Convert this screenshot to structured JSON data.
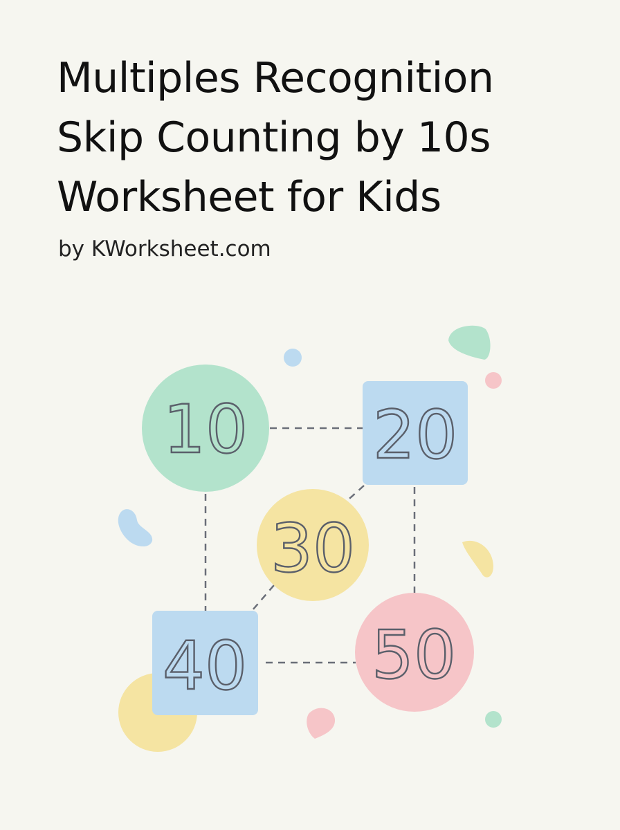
{
  "title_lines": [
    "Multiples Recognition",
    "Skip Counting by 10s",
    "Worksheet for Kids"
  ],
  "byline": "by KWorksheet.com",
  "numbers": [
    "10",
    "20",
    "30",
    "40",
    "50"
  ],
  "colors": {
    "background": "#f6f6f0",
    "green": "#b3e3cc",
    "blue": "#bcdaf0",
    "yellow": "#f5e4a2",
    "pink": "#f6c5c8"
  }
}
